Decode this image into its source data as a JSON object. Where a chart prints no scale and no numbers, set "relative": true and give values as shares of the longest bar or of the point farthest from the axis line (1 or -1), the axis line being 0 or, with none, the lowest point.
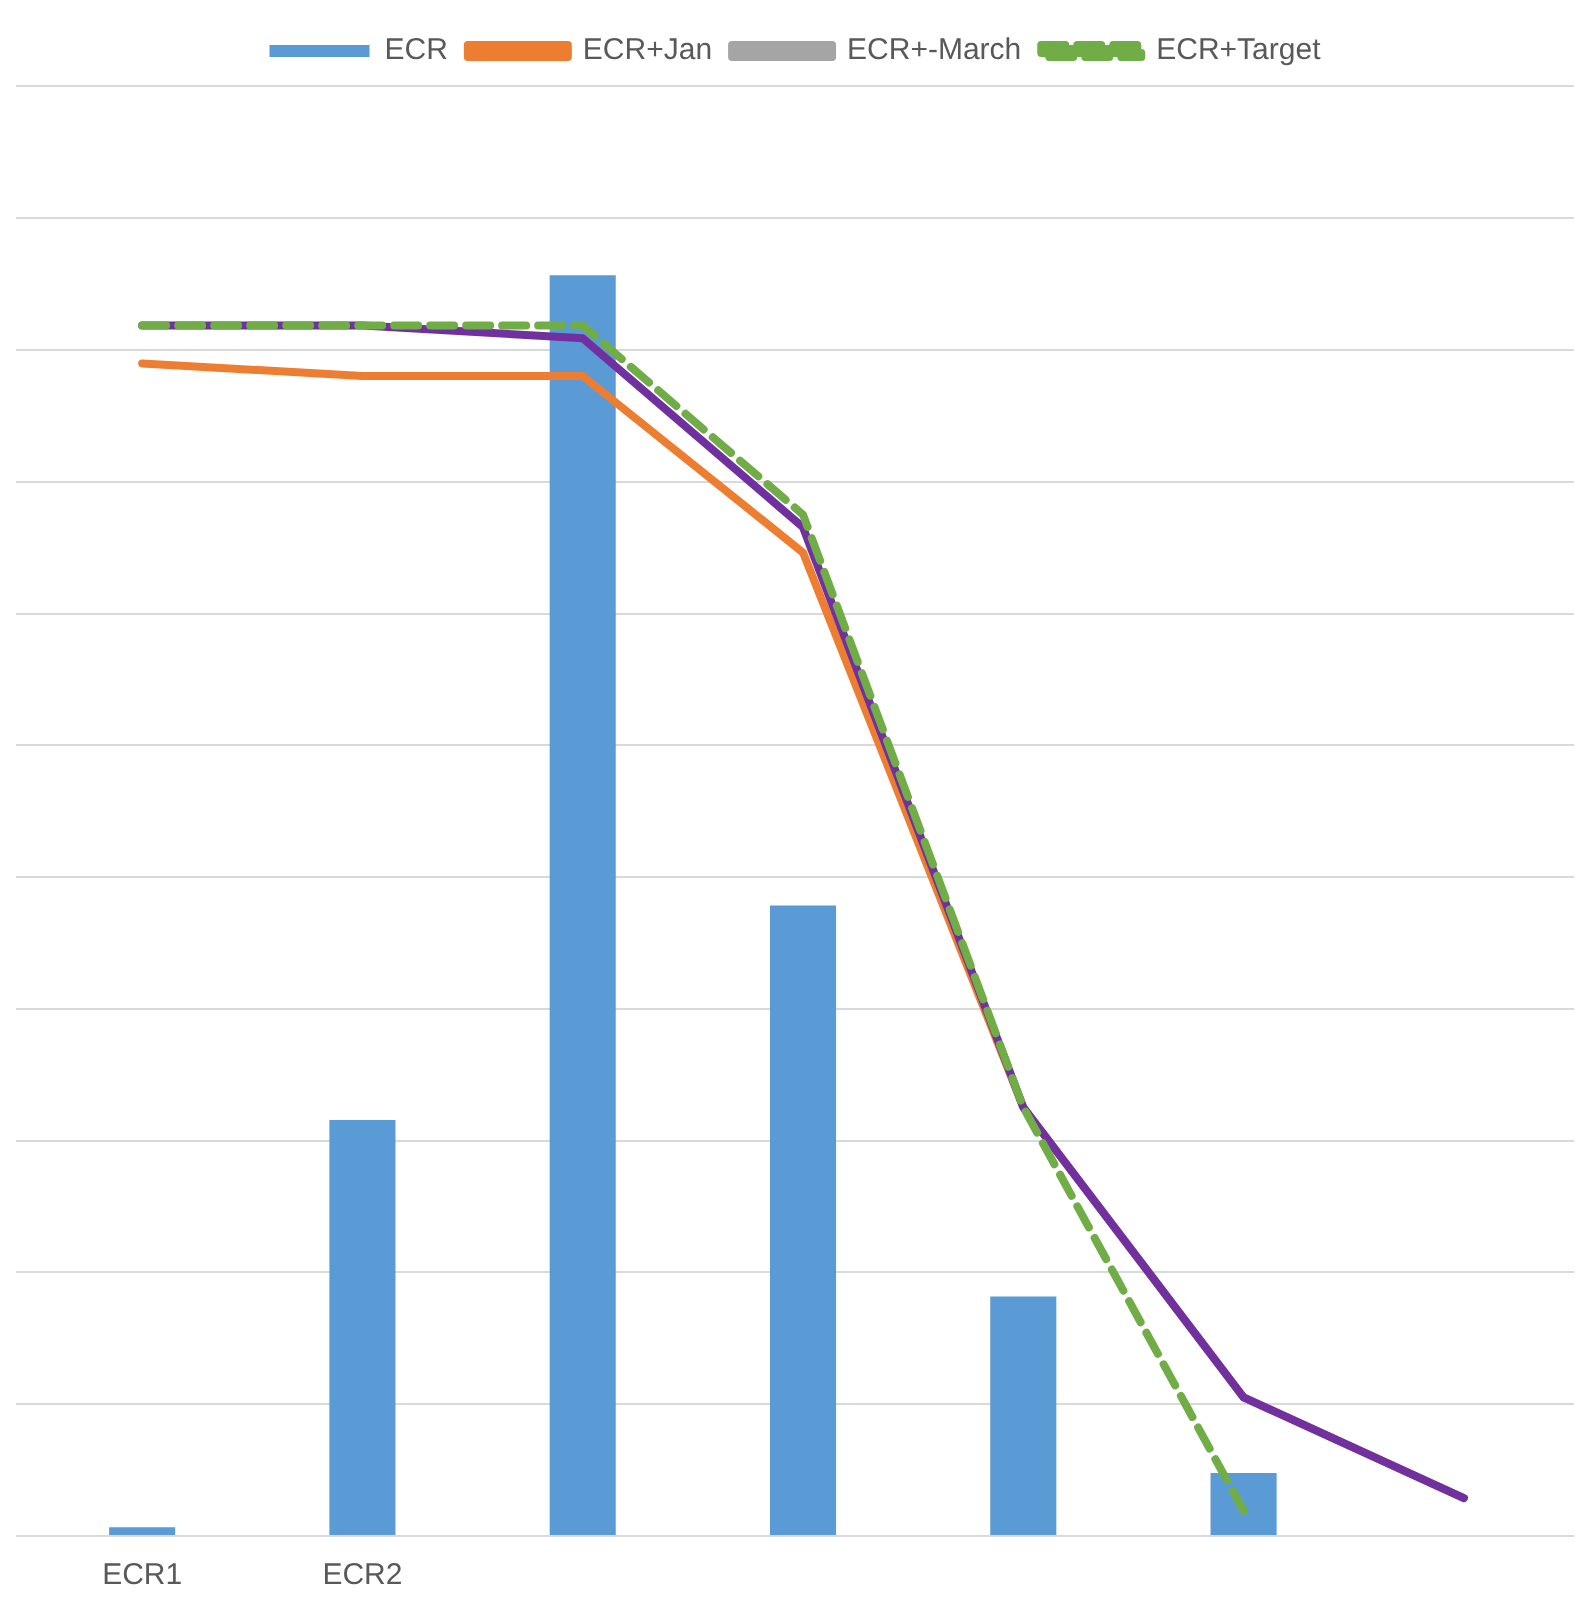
{
  "chart_data": {
    "type": "bar",
    "relative": true,
    "categories": [
      "ECR1",
      "ECR2",
      null,
      null,
      null,
      null,
      null
    ],
    "grid": "y",
    "legend": "top",
    "series": [
      {
        "name": "ECR",
        "color": "#5b9bd5",
        "values": [
          0.007,
          0.33,
          1,
          0.5,
          0.19,
          0.05,
          null
        ]
      },
      {
        "name": "ECR+Jan",
        "type": "line",
        "color": "#ed7d31",
        "values": [
          0.93,
          0.92,
          0.92,
          0.78,
          0.34,
          0.11,
          0.03
        ]
      },
      {
        "name": "ECR+-March",
        "type": "line",
        "color": "#a5a5a5",
        "values": [
          null,
          null,
          null,
          null,
          null,
          null,
          null
        ]
      },
      {
        "name": "ECR+Target",
        "type": "line",
        "color": "#70ad47",
        "line_style": "dashed",
        "values": [
          0.96,
          0.96,
          0.96,
          0.81,
          0.34,
          0.02,
          null
        ]
      },
      {
        "type": "line",
        "color": "#7030a0",
        "values": [
          0.96,
          0.96,
          0.95,
          0.8,
          0.34,
          0.11,
          0.03
        ]
      }
    ]
  }
}
